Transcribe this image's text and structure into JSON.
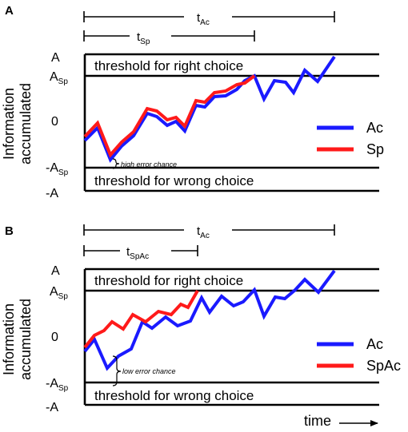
{
  "colors": {
    "ac": "#1a1aff",
    "sp": "#ff1a1a",
    "line": "#000000"
  },
  "panel_a": {
    "letter": "A",
    "ylabel_line1": "Information",
    "ylabel_line2": "accumulated",
    "level_a": "A",
    "level_asp_main": "A",
    "level_asp_sub": "Sp",
    "level_zero": "0",
    "level_neg_asp_main": "-A",
    "level_neg_asp_sub": "Sp",
    "level_neg_a": "-A",
    "threshold_right": "threshold for right choice",
    "threshold_wrong": "threshold for wrong choice",
    "t1_main": "t",
    "t1_sub": "Ac",
    "t2_main": "t",
    "t2_sub": "Sp",
    "note": "high error chance",
    "legend_1": "Ac",
    "legend_2": "Sp"
  },
  "panel_b": {
    "letter": "B",
    "ylabel_line1": "Information",
    "ylabel_line2": "accumulated",
    "level_a": "A",
    "level_asp_main": "A",
    "level_asp_sub": "Sp",
    "level_zero": "0",
    "level_neg_asp_main": "-A",
    "level_neg_asp_sub": "Sp",
    "level_neg_a": "-A",
    "threshold_right": "threshold for right choice",
    "threshold_wrong": "threshold for wrong choice",
    "t1_main": "t",
    "t1_sub": "Ac",
    "t2_main": "t",
    "t2_sub": "SpAc",
    "note": "low error chance",
    "legend_1": "Ac",
    "legend_2": "SpAc",
    "time_label": "time"
  }
}
